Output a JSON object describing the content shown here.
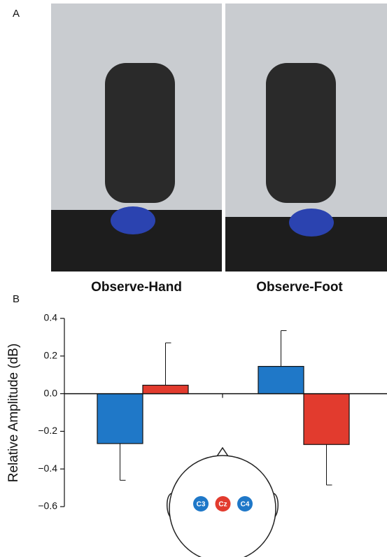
{
  "chart_data": {
    "type": "bar",
    "panel_labels": [
      "A",
      "B"
    ],
    "categories": [
      "Observe-Hand",
      "Observe-Foot"
    ],
    "y_label": "Relative Amplitude (dB)",
    "series": [
      {
        "color": "#1f78c8",
        "values": [
          -0.265,
          0.145
        ],
        "errors": [
          0.195,
          0.19
        ]
      },
      {
        "color": "#e23b2e",
        "values": [
          0.045,
          -0.27
        ],
        "errors": [
          0.225,
          0.215
        ]
      }
    ],
    "ylim": [
      -0.6,
      0.4
    ],
    "yticks": [
      {
        "value": -0.6,
        "label": "−0.6"
      },
      {
        "value": -0.4,
        "label": "−0.4"
      },
      {
        "value": -0.2,
        "label": "−0.2"
      },
      {
        "value": 0,
        "label": "0.0"
      },
      0.2,
      0.4
    ],
    "head_legend": [
      {
        "label": "C3",
        "color": "#1f78c8"
      },
      {
        "label": "Cz",
        "color": "#e23b2e"
      },
      {
        "label": "C4",
        "color": "#1f78c8"
      }
    ]
  }
}
